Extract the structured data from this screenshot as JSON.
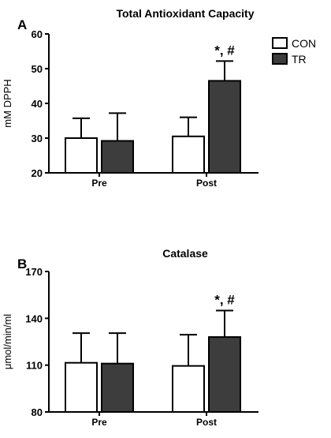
{
  "legend": {
    "items": [
      {
        "label": "CON",
        "color": "#ffffff"
      },
      {
        "label": "TR",
        "color": "#3d3d3d"
      }
    ],
    "placement": "top-right"
  },
  "chart_data": [
    {
      "type": "bar",
      "panel_label": "A",
      "title": "Total Antioxidant Capacity",
      "xlabel": "",
      "ylabel": "mM DPPH",
      "ylim": [
        20,
        60
      ],
      "yticks": [
        20,
        30,
        40,
        50,
        60
      ],
      "categories": [
        "Pre",
        "Post"
      ],
      "series": [
        {
          "name": "CON",
          "color": "#ffffff",
          "values": [
            30.0,
            30.5
          ],
          "error": [
            5.7,
            5.5
          ]
        },
        {
          "name": "TR",
          "color": "#3d3d3d",
          "values": [
            29.2,
            46.5
          ],
          "error": [
            8.0,
            5.7
          ]
        }
      ],
      "annotations": [
        {
          "text": "*, #",
          "category": "Post",
          "series": "TR"
        }
      ],
      "grid": false
    },
    {
      "type": "bar",
      "panel_label": "B",
      "title": "Catalase",
      "xlabel": "",
      "ylabel": "μmol/min/ml",
      "ylim": [
        80,
        170
      ],
      "yticks": [
        80,
        110,
        140,
        170
      ],
      "categories": [
        "Pre",
        "Post"
      ],
      "series": [
        {
          "name": "CON",
          "color": "#ffffff",
          "values": [
            111.5,
            109.5
          ],
          "error": [
            19.0,
            20.0
          ]
        },
        {
          "name": "TR",
          "color": "#3d3d3d",
          "values": [
            111.0,
            128.0
          ],
          "error": [
            19.5,
            17.0
          ]
        }
      ],
      "annotations": [
        {
          "text": "*, #",
          "category": "Post",
          "series": "TR"
        }
      ],
      "grid": false
    }
  ]
}
